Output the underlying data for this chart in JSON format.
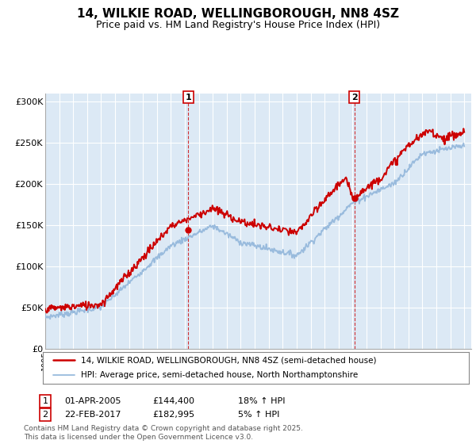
{
  "title": "14, WILKIE ROAD, WELLINGBOROUGH, NN8 4SZ",
  "subtitle": "Price paid vs. HM Land Registry's House Price Index (HPI)",
  "legend_line1": "14, WILKIE ROAD, WELLINGBOROUGH, NN8 4SZ (semi-detached house)",
  "legend_line2": "HPI: Average price, semi-detached house, North Northamptonshire",
  "annotation1_date": "01-APR-2005",
  "annotation1_price": "£144,400",
  "annotation1_hpi": "18% ↑ HPI",
  "annotation1_year": 2005.25,
  "annotation1_value": 144400,
  "annotation2_date": "22-FEB-2017",
  "annotation2_price": "£182,995",
  "annotation2_hpi": "5% ↑ HPI",
  "annotation2_year": 2017.13,
  "annotation2_value": 182995,
  "footer": "Contains HM Land Registry data © Crown copyright and database right 2025.\nThis data is licensed under the Open Government Licence v3.0.",
  "price_color": "#cc0000",
  "hpi_color": "#99bbdd",
  "background_color": "#dce9f5",
  "ylim": [
    0,
    310000
  ],
  "yticks": [
    0,
    50000,
    100000,
    150000,
    200000,
    250000,
    300000
  ],
  "ytick_labels": [
    "£0",
    "£50K",
    "£100K",
    "£150K",
    "£200K",
    "£250K",
    "£300K"
  ]
}
